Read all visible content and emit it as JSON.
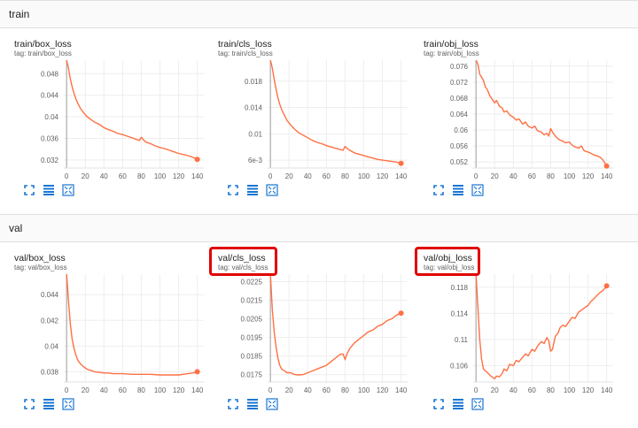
{
  "sections": [
    {
      "title": "train"
    },
    {
      "title": "val"
    }
  ],
  "charts": [
    {
      "title": "train/box_loss",
      "tag": "tag: train/box_loss",
      "yticks": [
        0.048,
        0.044,
        0.04,
        0.036,
        0.032
      ],
      "ytick_labels": [
        "0.048",
        "0.044",
        "0.04",
        "0.036",
        "0.032"
      ],
      "ylim": [
        0.0305,
        0.0505
      ],
      "chart_data": {
        "type": "line",
        "x": [
          0,
          2,
          4,
          6,
          8,
          10,
          12,
          15,
          18,
          22,
          26,
          30,
          35,
          40,
          45,
          50,
          55,
          60,
          65,
          70,
          75,
          78,
          80,
          82,
          85,
          90,
          95,
          100,
          105,
          110,
          115,
          120,
          125,
          130,
          135,
          140
        ],
        "series": [
          {
            "values": [
              0.0505,
              0.049,
              0.047,
              0.0455,
              0.0443,
              0.0433,
              0.0425,
              0.0415,
              0.0408,
              0.04,
              0.0395,
              0.039,
              0.0386,
              0.038,
              0.0376,
              0.0373,
              0.0369,
              0.0367,
              0.0364,
              0.0361,
              0.0358,
              0.0356,
              0.0362,
              0.0358,
              0.0353,
              0.035,
              0.0346,
              0.0343,
              0.0341,
              0.0338,
              0.0335,
              0.0332,
              0.033,
              0.0328,
              0.0325,
              0.0321
            ]
          }
        ],
        "xlim": [
          -3,
          147
        ],
        "xticks": [
          0,
          20,
          40,
          60,
          80,
          100,
          120,
          140
        ]
      }
    },
    {
      "title": "train/cls_loss",
      "tag": "tag: train/cls_loss",
      "yticks": [
        0.018,
        0.014,
        0.01,
        0.006
      ],
      "ytick_labels": [
        "0.018",
        "0.014",
        "0.01",
        "6e-3"
      ],
      "ylim": [
        0.0048,
        0.0212
      ],
      "chart_data": {
        "type": "line",
        "x": [
          0,
          2,
          4,
          6,
          8,
          10,
          12,
          15,
          18,
          22,
          26,
          30,
          35,
          40,
          45,
          50,
          55,
          60,
          65,
          70,
          75,
          78,
          80,
          82,
          85,
          90,
          95,
          100,
          105,
          110,
          115,
          120,
          125,
          130,
          135,
          140
        ],
        "series": [
          {
            "values": [
              0.0212,
              0.02,
              0.0183,
              0.0168,
              0.0155,
              0.0145,
              0.0137,
              0.0128,
              0.012,
              0.0113,
              0.0107,
              0.0102,
              0.0098,
              0.0094,
              0.009,
              0.0087,
              0.0085,
              0.0082,
              0.008,
              0.0078,
              0.0076,
              0.0075,
              0.0081,
              0.0078,
              0.0075,
              0.0071,
              0.0069,
              0.0067,
              0.0065,
              0.0063,
              0.0061,
              0.006,
              0.0059,
              0.0058,
              0.0057,
              0.0055
            ]
          }
        ],
        "xlim": [
          -3,
          147
        ],
        "xticks": [
          0,
          20,
          40,
          60,
          80,
          100,
          120,
          140
        ]
      }
    },
    {
      "title": "train/obj_loss",
      "tag": "tag: train/obj_loss",
      "yticks": [
        0.076,
        0.072,
        0.068,
        0.064,
        0.06,
        0.056,
        0.052
      ],
      "ytick_labels": [
        "0.076",
        "0.072",
        "0.068",
        "0.064",
        "0.06",
        "0.056",
        "0.052"
      ],
      "ylim": [
        0.0505,
        0.0775
      ],
      "chart_data": {
        "type": "line",
        "x": [
          0,
          2,
          4,
          6,
          8,
          10,
          12,
          15,
          18,
          20,
          22,
          25,
          28,
          30,
          33,
          36,
          40,
          43,
          46,
          50,
          53,
          56,
          60,
          63,
          66,
          70,
          73,
          76,
          78,
          80,
          82,
          85,
          88,
          90,
          93,
          96,
          100,
          103,
          106,
          110,
          113,
          116,
          120,
          123,
          126,
          130,
          133,
          136,
          138,
          140
        ],
        "series": [
          {
            "values": [
              0.0775,
              0.0765,
              0.074,
              0.0732,
              0.0724,
              0.0708,
              0.0702,
              0.0685,
              0.0675,
              0.0668,
              0.0674,
              0.066,
              0.0655,
              0.0645,
              0.0648,
              0.0638,
              0.0632,
              0.0625,
              0.0628,
              0.0615,
              0.062,
              0.061,
              0.0605,
              0.061,
              0.0598,
              0.0595,
              0.0588,
              0.0592,
              0.0585,
              0.0604,
              0.0595,
              0.0585,
              0.0578,
              0.0575,
              0.0572,
              0.0568,
              0.057,
              0.0562,
              0.0558,
              0.0555,
              0.056,
              0.0548,
              0.0545,
              0.0542,
              0.0538,
              0.0535,
              0.0532,
              0.0525,
              0.0518,
              0.051
            ]
          }
        ],
        "xlim": [
          -3,
          147
        ],
        "xticks": [
          0,
          20,
          40,
          60,
          80,
          100,
          120,
          140
        ]
      }
    },
    {
      "title": "val/box_loss",
      "tag": "tag: val/box_loss",
      "yticks": [
        0.044,
        0.042,
        0.04,
        0.038
      ],
      "ytick_labels": [
        "0.044",
        "0.042",
        "0.04",
        "0.038"
      ],
      "ylim": [
        0.0372,
        0.0456
      ],
      "chart_data": {
        "type": "line",
        "x": [
          0,
          2,
          4,
          6,
          8,
          10,
          12,
          15,
          18,
          22,
          26,
          30,
          35,
          40,
          45,
          50,
          60,
          70,
          80,
          90,
          100,
          110,
          120,
          130,
          135,
          140
        ],
        "series": [
          {
            "values": [
              0.0456,
              0.0435,
              0.0417,
              0.0405,
              0.0398,
              0.0393,
              0.0389,
              0.0386,
              0.0384,
              0.0382,
              0.0381,
              0.038,
              0.03795,
              0.0379,
              0.0379,
              0.03785,
              0.03785,
              0.0378,
              0.0378,
              0.0378,
              0.03775,
              0.03775,
              0.03775,
              0.03785,
              0.0379,
              0.038
            ]
          }
        ],
        "xlim": [
          -3,
          147
        ],
        "xticks": [
          0,
          20,
          40,
          60,
          80,
          100,
          120,
          140
        ]
      }
    },
    {
      "title": "val/cls_loss",
      "tag": "tag: val/cls_loss",
      "yticks": [
        0.0225,
        0.0215,
        0.0205,
        0.0195,
        0.0185,
        0.0175
      ],
      "ytick_labels": [
        "0.0225",
        "0.0215",
        "0.0205",
        "0.0195",
        "0.0185",
        "0.0175"
      ],
      "ylim": [
        0.0171,
        0.0229
      ],
      "chart_data": {
        "type": "line",
        "x": [
          0,
          2,
          4,
          6,
          8,
          10,
          12,
          15,
          18,
          22,
          26,
          30,
          35,
          40,
          45,
          50,
          55,
          60,
          65,
          70,
          75,
          78,
          80,
          82,
          85,
          90,
          95,
          100,
          105,
          110,
          115,
          120,
          125,
          130,
          135,
          140
        ],
        "series": [
          {
            "values": [
              0.0229,
              0.021,
              0.0198,
              0.019,
              0.0184,
              0.018,
              0.0178,
              0.0177,
              0.0176,
              0.0176,
              0.0175,
              0.01748,
              0.0175,
              0.0176,
              0.0177,
              0.0178,
              0.0179,
              0.018,
              0.0182,
              0.0184,
              0.0186,
              0.0186,
              0.0183,
              0.0186,
              0.0189,
              0.0192,
              0.0194,
              0.0196,
              0.0198,
              0.0199,
              0.0201,
              0.0202,
              0.0204,
              0.0205,
              0.0207,
              0.0208
            ]
          }
        ],
        "xlim": [
          -3,
          147
        ],
        "xticks": [
          0,
          20,
          40,
          60,
          80,
          100,
          120,
          140
        ]
      }
    },
    {
      "title": "val/obj_loss",
      "tag": "tag: val/obj_loss",
      "yticks": [
        0.118,
        0.114,
        0.11,
        0.106
      ],
      "ytick_labels": [
        "0.118",
        "0.114",
        "0.11",
        "0.106"
      ],
      "ylim": [
        0.1035,
        0.12
      ],
      "chart_data": {
        "type": "line",
        "x": [
          0,
          2,
          4,
          6,
          8,
          10,
          12,
          15,
          18,
          20,
          22,
          25,
          28,
          30,
          33,
          36,
          40,
          43,
          46,
          50,
          53,
          56,
          60,
          63,
          66,
          70,
          73,
          76,
          78,
          80,
          82,
          85,
          88,
          90,
          93,
          96,
          100,
          103,
          106,
          110,
          113,
          116,
          120,
          123,
          126,
          130,
          133,
          136,
          138,
          140
        ],
        "series": [
          {
            "values": [
              0.12,
              0.115,
              0.11,
              0.107,
              0.1055,
              0.1052,
              0.105,
              0.1045,
              0.1042,
              0.104,
              0.1044,
              0.1043,
              0.1048,
              0.1055,
              0.1052,
              0.1062,
              0.106,
              0.1068,
              0.1066,
              0.1073,
              0.1078,
              0.1075,
              0.1085,
              0.1082,
              0.109,
              0.1097,
              0.1094,
              0.1103,
              0.1098,
              0.1082,
              0.1085,
              0.1105,
              0.111,
              0.1118,
              0.1122,
              0.112,
              0.1128,
              0.1134,
              0.1132,
              0.1142,
              0.1145,
              0.1148,
              0.1152,
              0.1158,
              0.1162,
              0.1168,
              0.1172,
              0.1175,
              0.1178,
              0.1182
            ]
          }
        ],
        "xlim": [
          -3,
          147
        ],
        "xticks": [
          0,
          20,
          40,
          60,
          80,
          100,
          120,
          140
        ]
      }
    }
  ],
  "colors": {
    "line": "#ff7043",
    "highlight": "#e00000",
    "tool": "#1976d2",
    "axis": "#9e9e9e",
    "grid": "#eeeeee"
  },
  "tools": [
    "expand-icon",
    "data-table-icon",
    "fit-domain-icon"
  ],
  "highlighted": [
    "val/cls_loss",
    "val/obj_loss"
  ]
}
